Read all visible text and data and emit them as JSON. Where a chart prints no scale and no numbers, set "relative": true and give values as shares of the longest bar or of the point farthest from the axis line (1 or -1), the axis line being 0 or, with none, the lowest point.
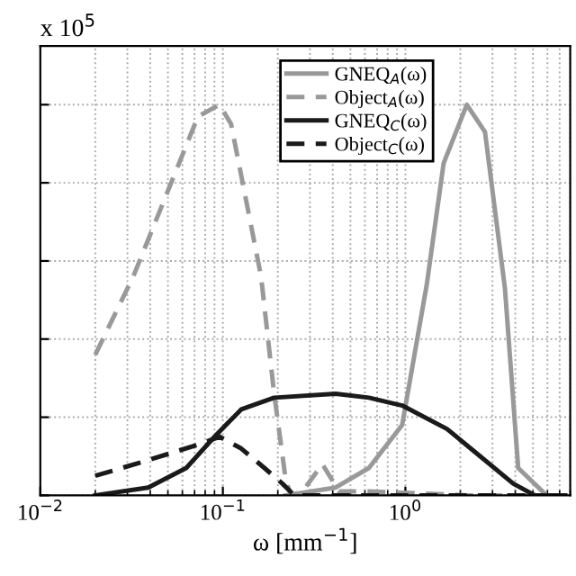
{
  "chart_data": {
    "type": "line",
    "relative": true,
    "log": "x",
    "grid": true,
    "legend": "top right",
    "xlabel": "ω [mm$^{−1}$]",
    "annotations": [
      "x 10$^{5}$"
    ],
    "xlim": [
      0.01,
      8
    ],
    "xticks": [
      {
        "value": 0.01,
        "label": "10$^{−2}$"
      },
      {
        "value": 0.1,
        "label": "10$^{−1}$"
      },
      {
        "value": 1,
        "label": "10$^{0}$"
      }
    ],
    "series": [
      {
        "name": "GNEQ$_{A}$(ω)",
        "color": "#999999",
        "line_style": "solid",
        "x": [
          0.221,
          0.415,
          0.631,
          0.96,
          1.31,
          1.62,
          2.17,
          2.73,
          3.51,
          4.15,
          5.93,
          7.5
        ],
        "values": [
          0,
          0.02,
          0.07,
          0.18,
          0.54,
          0.85,
          1.0,
          0.93,
          0.53,
          0.07,
          0,
          0
        ]
      },
      {
        "name": "Object$_{A}$(ω)",
        "color": "#999999",
        "line_style": "dashed",
        "x": [
          0.02,
          0.0323,
          0.0731,
          0.096,
          0.111,
          0.162,
          0.191,
          0.221,
          0.236,
          0.273,
          0.351,
          0.433,
          0.631,
          2.2,
          6.3
        ],
        "values": [
          0.36,
          0.56,
          0.97,
          1.0,
          0.95,
          0.56,
          0.26,
          0.04,
          0,
          0.01,
          0.08,
          0.01,
          0.01,
          0,
          0
        ]
      },
      {
        "name": "GNEQ$_{C}$(ω)",
        "color": "#1a1a1a",
        "line_style": "solid",
        "x": [
          0.02,
          0.039,
          0.063,
          0.09,
          0.126,
          0.191,
          0.415,
          0.631,
          0.96,
          1.69,
          2.57,
          3.9,
          5.12,
          7.5
        ],
        "values": [
          0,
          0.02,
          0.07,
          0.15,
          0.22,
          0.25,
          0.26,
          0.25,
          0.23,
          0.17,
          0.1,
          0.03,
          0,
          0
        ]
      },
      {
        "name": "Object$_{C}$(ω)",
        "color": "#1a1a1a",
        "line_style": "dashed",
        "x": [
          0.02,
          0.039,
          0.0731,
          0.096,
          0.126,
          0.169,
          0.212,
          0.246,
          0.631,
          2.2,
          6.3
        ],
        "values": [
          0.05,
          0.09,
          0.13,
          0.15,
          0.12,
          0.07,
          0.03,
          0,
          0,
          0,
          0
        ]
      }
    ]
  }
}
